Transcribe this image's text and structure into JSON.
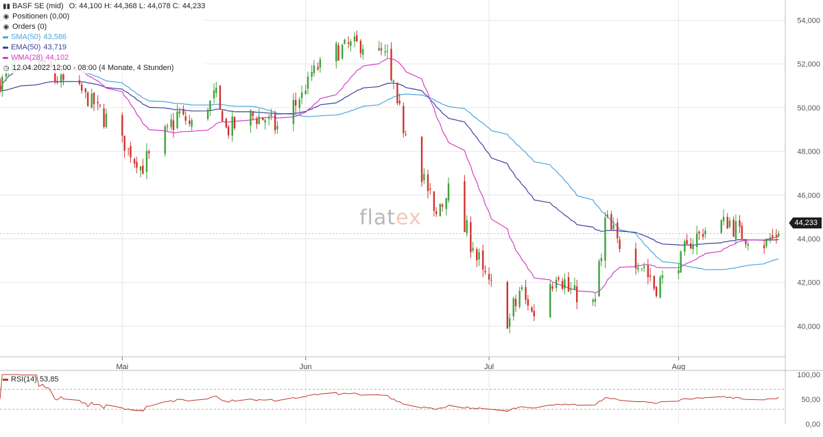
{
  "legend": {
    "title": "BASF SE (mid)",
    "ohlc": "O: 44,100  H: 44,368  L: 44,078  C: 44,233",
    "positions": "Positionen (0,00)",
    "orders": "Orders (0)",
    "sma_label": "SMA(50)",
    "sma_value": "43,586",
    "ema_label": "EMA(50)",
    "ema_value": "43,719",
    "wma_label": "WMA(28)",
    "wma_value": "44,102",
    "timeframe": "12.04.2022 12:00 - 08:00  (4 Monate, 4 Stunden)"
  },
  "price_tag": "44,233",
  "watermark": {
    "text": "flat",
    "accent": "ex"
  },
  "colors": {
    "up": "#3aa23a",
    "down": "#d0312d",
    "sma": "#4aa6dc",
    "ema": "#3b3f9e",
    "wma": "#d23fc9",
    "rsi": "#c0392b",
    "grid": "#e6e6e6"
  },
  "rsi_legend": {
    "label": "RSI(14)",
    "value": "53,85"
  },
  "chart_data": [
    {
      "type": "candlestick",
      "title": "BASF SE (mid)",
      "y_ticks": [
        "54,000",
        "52,000",
        "50,000",
        "48,000",
        "46,000",
        "44,000",
        "42,000",
        "40,000"
      ],
      "y_tick_values": [
        54,
        52,
        50,
        48,
        46,
        44,
        42,
        40
      ],
      "ylim": [
        38.6,
        54.8
      ],
      "x_ticks": [
        {
          "label": "Mai",
          "date": "2022-05-02"
        },
        {
          "label": "Jun",
          "date": "2022-06-01"
        },
        {
          "label": "Jul",
          "date": "2022-07-01"
        },
        {
          "label": "Aug",
          "date": "2022-08-01"
        }
      ],
      "close_path": {
        "dates": [
          "2022-04-12",
          "2022-04-14",
          "2022-04-19",
          "2022-04-21",
          "2022-04-25",
          "2022-04-27",
          "2022-04-29",
          "2022-05-03",
          "2022-05-05",
          "2022-05-09",
          "2022-05-11",
          "2022-05-13",
          "2022-05-17",
          "2022-05-19",
          "2022-05-23",
          "2022-05-25",
          "2022-05-27",
          "2022-05-31",
          "2022-06-02",
          "2022-06-06",
          "2022-06-08",
          "2022-06-10",
          "2022-06-14",
          "2022-06-16",
          "2022-06-20",
          "2022-06-22",
          "2022-06-24",
          "2022-06-28",
          "2022-06-30",
          "2022-07-04",
          "2022-07-06",
          "2022-07-08",
          "2022-07-12",
          "2022-07-14",
          "2022-07-18",
          "2022-07-20",
          "2022-07-22",
          "2022-07-26",
          "2022-07-28",
          "2022-08-01",
          "2022-08-03",
          "2022-08-05",
          "2022-08-09",
          "2022-08-11",
          "2022-08-15",
          "2022-08-17"
        ],
        "values": [
          51.2,
          51.8,
          52.0,
          51.3,
          50.7,
          50.2,
          49.5,
          48.0,
          47.3,
          48.8,
          49.7,
          49.2,
          50.5,
          49.0,
          49.6,
          49.5,
          49.1,
          50.5,
          51.6,
          52.6,
          52.8,
          52.9,
          52.3,
          49.8,
          47.0,
          45.0,
          46.2,
          43.8,
          42.3,
          40.3,
          41.6,
          40.6,
          42.5,
          41.6,
          41.0,
          44.8,
          43.8,
          42.8,
          41.8,
          43.0,
          43.9,
          44.4,
          44.8,
          44.2,
          43.8,
          44.233
        ]
      },
      "series": [
        {
          "name": "SMA(50)",
          "last": 43.586
        },
        {
          "name": "EMA(50)",
          "last": 43.719
        },
        {
          "name": "WMA(28)",
          "last": 44.102
        }
      ],
      "last_close": 44.233,
      "grid": true,
      "legend_position": "top-left"
    },
    {
      "type": "line",
      "title": "RSI(14)",
      "last": 53.85,
      "y_ticks": [
        "100,00",
        "50,00",
        "0,00"
      ],
      "y_tick_values": [
        100,
        50,
        0
      ],
      "ylim": [
        0,
        100
      ],
      "bands": [
        70,
        30
      ],
      "grid": false
    }
  ]
}
